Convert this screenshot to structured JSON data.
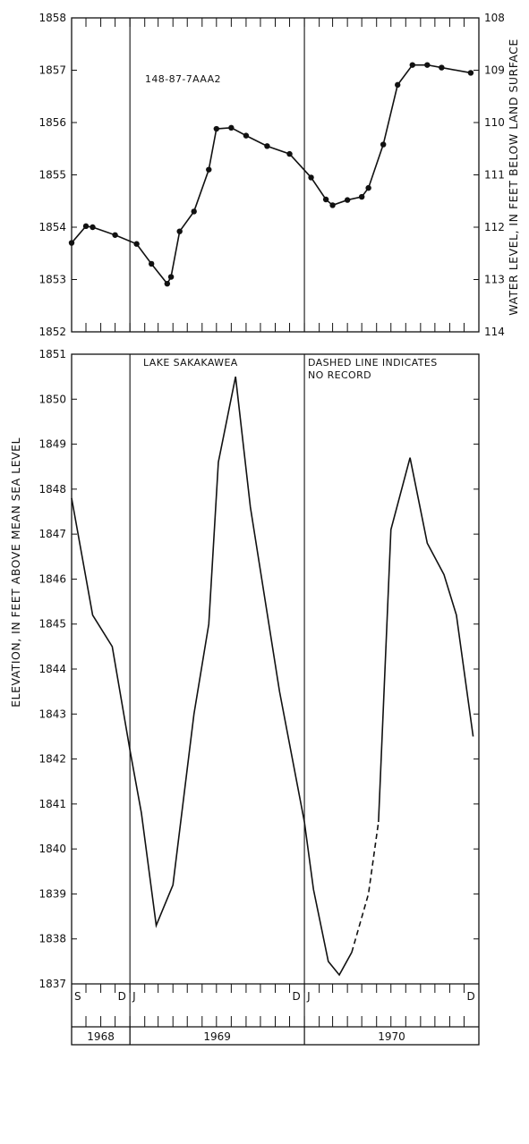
{
  "colors": {
    "ink": "#111111",
    "background": "#ffffff"
  },
  "chart_data": [
    {
      "id": "well",
      "type": "line",
      "markers": true,
      "series_label": "148-87-7AAA2",
      "ylabel": "ELEVATION, IN FEET ABOVE MEAN SEA LEVEL",
      "y2label": "WATER LEVEL, IN FEET BELOW LAND SURFACE",
      "ylim": [
        1852,
        1858
      ],
      "y2lim": [
        114,
        108
      ],
      "xlim": [
        "1968-09-01",
        "1971-01-01"
      ],
      "grid": false,
      "yticks": [
        "1852",
        "1853",
        "1854",
        "1855",
        "1856",
        "1857",
        "1858"
      ],
      "y2ticks": [
        "114",
        "113",
        "112",
        "111",
        "110",
        "109",
        "108"
      ],
      "points": [
        {
          "x": "1968-09-01",
          "y": 1853.7
        },
        {
          "x": "1968-10-01",
          "y": 1854.02
        },
        {
          "x": "1968-10-15",
          "y": 1854.0
        },
        {
          "x": "1968-12-01",
          "y": 1853.85
        },
        {
          "x": "1969-01-15",
          "y": 1853.68
        },
        {
          "x": "1969-02-15",
          "y": 1853.3
        },
        {
          "x": "1969-03-20",
          "y": 1852.92
        },
        {
          "x": "1969-03-28",
          "y": 1853.05
        },
        {
          "x": "1969-04-15",
          "y": 1853.92
        },
        {
          "x": "1969-05-15",
          "y": 1854.3
        },
        {
          "x": "1969-06-15",
          "y": 1855.1
        },
        {
          "x": "1969-07-01",
          "y": 1855.88
        },
        {
          "x": "1969-08-01",
          "y": 1855.9
        },
        {
          "x": "1969-09-01",
          "y": 1855.75
        },
        {
          "x": "1969-10-15",
          "y": 1855.55
        },
        {
          "x": "1969-12-01",
          "y": 1855.4
        },
        {
          "x": "1970-01-15",
          "y": 1854.95
        },
        {
          "x": "1970-02-15",
          "y": 1854.53
        },
        {
          "x": "1970-03-01",
          "y": 1854.42
        },
        {
          "x": "1970-04-01",
          "y": 1854.52
        },
        {
          "x": "1970-05-01",
          "y": 1854.58
        },
        {
          "x": "1970-05-15",
          "y": 1854.75
        },
        {
          "x": "1970-06-15",
          "y": 1855.58
        },
        {
          "x": "1970-07-15",
          "y": 1856.72
        },
        {
          "x": "1970-08-15",
          "y": 1857.1
        },
        {
          "x": "1970-09-15",
          "y": 1857.1
        },
        {
          "x": "1970-10-15",
          "y": 1857.05
        },
        {
          "x": "1970-12-15",
          "y": 1856.95
        }
      ]
    },
    {
      "id": "lake",
      "type": "line",
      "markers": false,
      "series_label": "LAKE SAKAKAWEA",
      "annotation": [
        "DASHED LINE INDICATES",
        "NO RECORD"
      ],
      "ylim": [
        1837,
        1851
      ],
      "xlim": [
        "1968-09-01",
        "1971-01-01"
      ],
      "grid": false,
      "yticks": [
        "1837",
        "1838",
        "1839",
        "1840",
        "1841",
        "1842",
        "1843",
        "1844",
        "1845",
        "1846",
        "1847",
        "1848",
        "1849",
        "1850",
        "1851"
      ],
      "segments": [
        {
          "style": "solid",
          "points": [
            {
              "x": "1968-09-01",
              "y": 1847.8
            },
            {
              "x": "1968-10-15",
              "y": 1845.2
            },
            {
              "x": "1968-11-25",
              "y": 1844.5
            },
            {
              "x": "1969-01-01",
              "y": 1842.2
            },
            {
              "x": "1969-01-25",
              "y": 1840.8
            },
            {
              "x": "1969-02-25",
              "y": 1838.3
            },
            {
              "x": "1969-04-01",
              "y": 1839.2
            },
            {
              "x": "1969-05-15",
              "y": 1843.0
            },
            {
              "x": "1969-06-15",
              "y": 1845.0
            },
            {
              "x": "1969-07-05",
              "y": 1848.6
            },
            {
              "x": "1969-08-10",
              "y": 1850.5
            },
            {
              "x": "1969-09-10",
              "y": 1847.6
            },
            {
              "x": "1969-11-10",
              "y": 1843.5
            },
            {
              "x": "1970-01-01",
              "y": 1840.6
            },
            {
              "x": "1970-01-20",
              "y": 1839.1
            },
            {
              "x": "1970-02-20",
              "y": 1837.5
            },
            {
              "x": "1970-03-15",
              "y": 1837.2
            },
            {
              "x": "1970-04-10",
              "y": 1837.7
            }
          ]
        },
        {
          "style": "dashed",
          "points": [
            {
              "x": "1970-04-10",
              "y": 1837.7
            },
            {
              "x": "1970-05-15",
              "y": 1839.0
            },
            {
              "x": "1970-06-05",
              "y": 1840.6
            }
          ]
        },
        {
          "style": "solid",
          "points": [
            {
              "x": "1970-06-05",
              "y": 1840.6
            },
            {
              "x": "1970-07-01",
              "y": 1847.1
            },
            {
              "x": "1970-08-10",
              "y": 1848.7
            },
            {
              "x": "1970-09-15",
              "y": 1846.8
            },
            {
              "x": "1970-10-20",
              "y": 1846.1
            },
            {
              "x": "1970-11-15",
              "y": 1845.2
            },
            {
              "x": "1970-12-20",
              "y": 1842.5
            }
          ]
        }
      ]
    }
  ],
  "time_axis": {
    "months": [
      {
        "label": "S",
        "date": "1968-09-01"
      },
      {
        "label": "D",
        "date": "1968-12-01"
      },
      {
        "label": "J",
        "date": "1969-01-01"
      },
      {
        "label": "D",
        "date": "1969-12-01"
      },
      {
        "label": "J",
        "date": "1970-01-01"
      },
      {
        "label": "D",
        "date": "1970-12-01"
      }
    ],
    "years": [
      {
        "label": "1968",
        "start": "1968-09-01",
        "end": "1969-01-01"
      },
      {
        "label": "1969",
        "start": "1969-01-01",
        "end": "1970-01-01"
      },
      {
        "label": "1970",
        "start": "1970-01-01",
        "end": "1971-01-01"
      }
    ]
  }
}
